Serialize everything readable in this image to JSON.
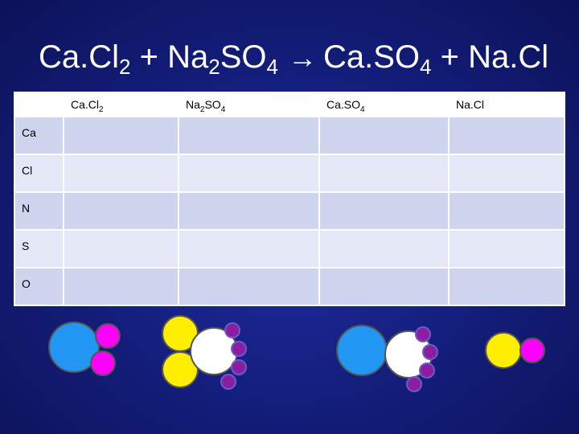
{
  "equation": {
    "reactant1": {
      "a": "Ca.Cl",
      "sub": "2"
    },
    "plus1": "+",
    "reactant2": {
      "a": "Na",
      "sub1": "2",
      "b": "SO",
      "sub2": "4"
    },
    "arrow": "→",
    "product1": {
      "a": "Ca.SO",
      "sub": "4"
    },
    "plus2": "+",
    "product2": "Na.Cl"
  },
  "table": {
    "headers": [
      {
        "a": "Ca.Cl",
        "sub": "2"
      },
      {
        "a": "Na",
        "sub1": "2",
        "b": "SO",
        "sub2": "4"
      },
      {
        "a": "Ca.SO",
        "sub": "4"
      },
      {
        "a": "Na.Cl"
      }
    ],
    "rows": [
      "Ca",
      "Cl",
      "N",
      "S",
      "O"
    ]
  },
  "atom_colors": {
    "calcium": "#2196f3",
    "chlorine": "#ff00ff",
    "sodium": "#ffee00",
    "sulfur": "#ffffff",
    "oxygen": "#8b1e9e"
  }
}
